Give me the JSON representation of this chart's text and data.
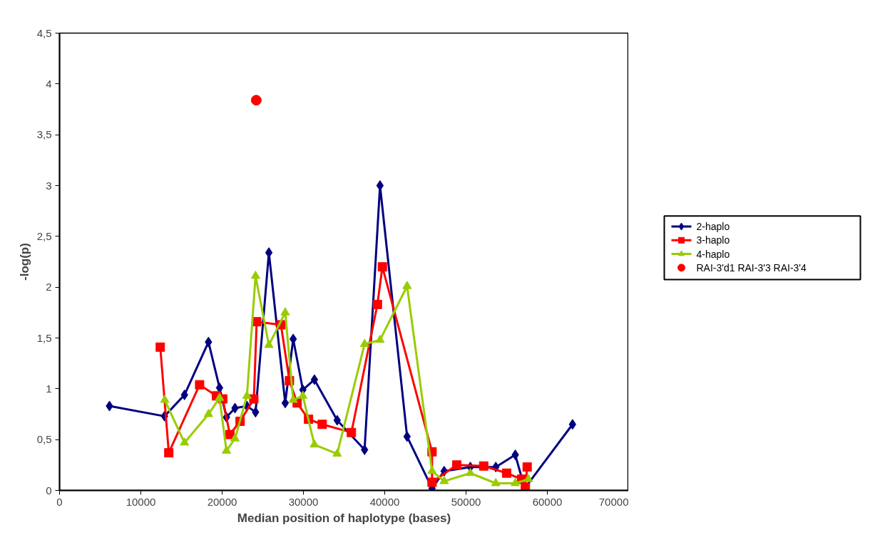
{
  "chart_data": {
    "type": "line",
    "xlabel": "Median position of haplotype (bases)",
    "ylabel": "-log(p)",
    "xlim": [
      0,
      70000
    ],
    "ylim": [
      0,
      4.5
    ],
    "xticks": [
      0,
      10000,
      20000,
      30000,
      40000,
      50000,
      60000,
      70000
    ],
    "yticks": [
      0,
      {
        "value": 0.5,
        "label": "0,5"
      },
      1,
      {
        "value": 1.5,
        "label": "1,5"
      },
      2,
      {
        "value": 2.5,
        "label": "2,5"
      },
      3,
      {
        "value": 3.5,
        "label": "3,5"
      },
      4,
      {
        "value": 4.5,
        "label": "4,5"
      }
    ],
    "grid": false,
    "legend": "right",
    "series": [
      {
        "name": "2-haplo",
        "color": "#000080",
        "marker": "diamond",
        "x": [
          6140,
          12910,
          15370,
          18320,
          19680,
          20530,
          21580,
          23050,
          24110,
          25750,
          27760,
          28740,
          29930,
          31350,
          34150,
          37520,
          39420,
          42750,
          45820,
          47310,
          50530,
          53660,
          56060,
          57220,
          63100
        ],
        "values": [
          0.83,
          0.73,
          0.94,
          1.46,
          1.01,
          0.72,
          0.81,
          0.83,
          0.77,
          2.34,
          0.86,
          1.49,
          0.99,
          1.09,
          0.69,
          0.4,
          3.0,
          0.53,
          0.02,
          0.19,
          0.23,
          0.23,
          0.35,
          0.02,
          0.65
        ]
      },
      {
        "name": "3-haplo",
        "color": "#ff0000",
        "marker": "square",
        "x": [
          12390,
          13440,
          17230,
          19300,
          20070,
          20950,
          22210,
          23900,
          24250,
          27230,
          28280,
          29230,
          30630,
          32310,
          35900,
          39100,
          39710,
          45820,
          45820,
          48860,
          52170,
          55000,
          56840,
          57300,
          57520
        ],
        "values": [
          1.41,
          0.37,
          1.04,
          0.93,
          0.9,
          0.55,
          0.68,
          0.9,
          1.66,
          1.63,
          1.08,
          0.86,
          0.7,
          0.65,
          0.57,
          1.83,
          2.2,
          0.38,
          0.08,
          0.25,
          0.24,
          0.17,
          0.11,
          0.03,
          0.23
        ]
      },
      {
        "name": "4-haplo",
        "color": "#99cc00",
        "marker": "triangle",
        "x": [
          12940,
          15370,
          18320,
          19680,
          20530,
          21580,
          23050,
          24110,
          25750,
          27760,
          28740,
          29930,
          31350,
          34150,
          37520,
          39420,
          42750,
          45820,
          47310,
          50530,
          53660,
          56060,
          57670
        ],
        "values": [
          0.89,
          0.47,
          0.75,
          0.91,
          0.39,
          0.51,
          0.93,
          2.11,
          1.43,
          1.75,
          0.89,
          0.93,
          0.45,
          0.36,
          1.44,
          1.48,
          2.01,
          0.19,
          0.09,
          0.17,
          0.07,
          0.07,
          0.11
        ]
      },
      {
        "name": "RAI-3'd1 RAI-3'3 RAI-3'4",
        "color": "#ff0000",
        "type": "scatter",
        "marker": "circle",
        "x": [
          24200
        ],
        "values": [
          3.84
        ]
      }
    ]
  }
}
